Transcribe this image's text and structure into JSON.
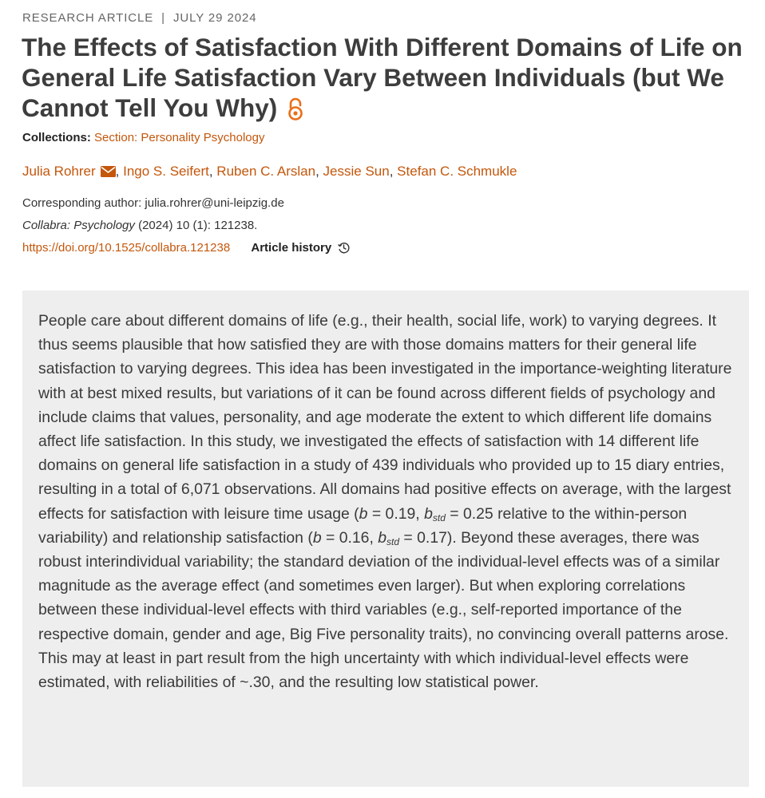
{
  "article": {
    "type": "RESEARCH ARTICLE",
    "separator": "|",
    "date": "JULY 29 2024",
    "title": "The Effects of Satisfaction With Different Domains of Life on General Life Satisfaction Vary Between Individuals (but We Cannot Tell You Why)",
    "open_access_icon": "open-access-lock-icon",
    "collections_label": "Collections:",
    "collections_value": "Section: Personality Psychology",
    "authors": [
      "Julia Rohrer",
      "Ingo S. Seifert",
      "Ruben C. Arslan",
      "Jessie Sun",
      "Stefan C. Schmukle"
    ],
    "corresponding": "Corresponding author: julia.rohrer@uni-leipzig.de",
    "journal_name": "Collabra: Psychology",
    "journal_details": "(2024) 10 (1): 121238.",
    "doi": "https://doi.org/10.1525/collabra.121238",
    "history_label": "Article history",
    "accent_color": "#c4570c"
  },
  "abstract": {
    "p1": "People care about different domains of life (e.g., their health, social life, work) to varying degrees. It thus seems plausible that how satisfied they are with those domains matters for their general life satisfaction to varying degrees. This idea has been investigated in the importance-weighting literature with at best mixed results, but variations of it can be found across different fields of psychology and include claims that values, personality, and age moderate the extent to which different life domains affect life satisfaction. In this study, we investigated the effects of satisfaction with 14 different life domains on general life satisfaction in a study of 439 individuals who provided up to 15 diary entries, resulting in a total of 6,071 observations. All domains had positive effects on average, with the largest effects for satisfaction with leisure time usage (",
    "b": "b",
    "bstd": "b",
    "std": "std",
    "v1": " = 0.19, ",
    "v2": " = 0.25 relative to the within-person variability) and relationship satisfaction (",
    "v3": " = 0.16, ",
    "v4": " = 0.17). Beyond these averages, there was robust interindividual variability; the standard deviation of the individual-level effects was of a similar magnitude as the average effect (and sometimes even larger). But when exploring correlations between these individual-level effects with third variables (e.g., self-reported importance of the respective domain, gender and age, Big Five personality traits), no convincing overall patterns arose. This may at least in part result from the high uncertainty with which individual-level effects were estimated, with reliabilities of ~.30, and the resulting low statistical power."
  }
}
